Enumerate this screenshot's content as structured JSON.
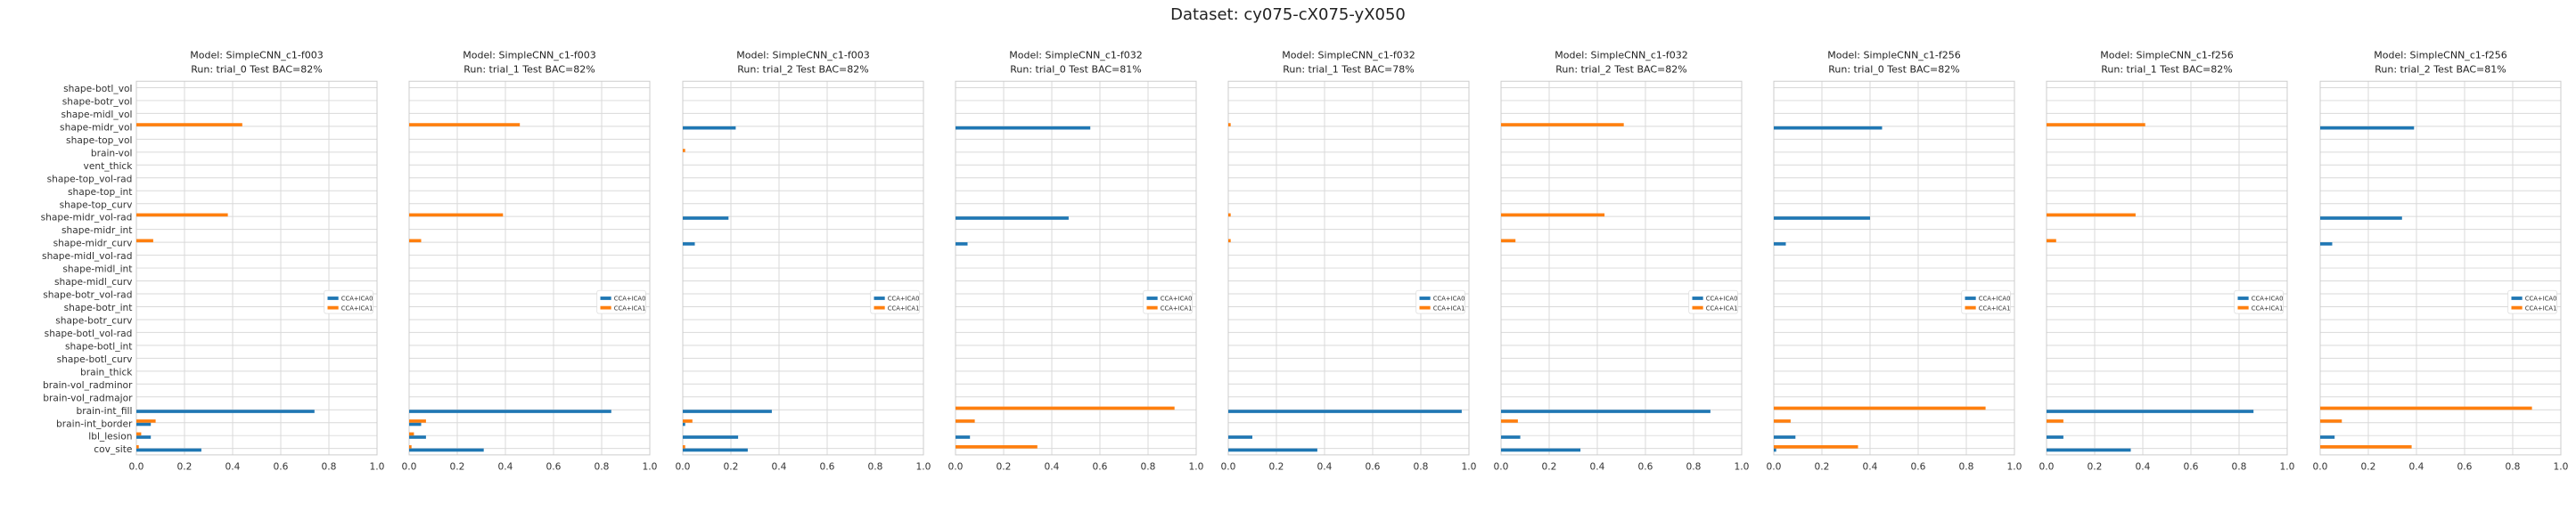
{
  "figure": {
    "suptitle": "Dataset: cy075-cX075-yX050"
  },
  "chart_data": {
    "type": "bar",
    "orientation": "horizontal",
    "categories": [
      "shape-botl_vol",
      "shape-botr_vol",
      "shape-midl_vol",
      "shape-midr_vol",
      "shape-top_vol",
      "brain-vol",
      "vent_thick",
      "shape-top_vol-rad",
      "shape-top_int",
      "shape-top_curv",
      "shape-midr_vol-rad",
      "shape-midr_int",
      "shape-midr_curv",
      "shape-midl_vol-rad",
      "shape-midl_int",
      "shape-midl_curv",
      "shape-botr_vol-rad",
      "shape-botr_int",
      "shape-botr_curv",
      "shape-botl_vol-rad",
      "shape-botl_int",
      "shape-botl_curv",
      "brain_thick",
      "brain-vol_radminor",
      "brain-vol_radmajor",
      "brain-int_fill",
      "brain-int_border",
      "lbl_lesion",
      "cov_site"
    ],
    "xlim": [
      0,
      1
    ],
    "xticks": [
      "0.0",
      "0.2",
      "0.4",
      "0.6",
      "0.8",
      "1.0"
    ],
    "grid": true,
    "legend_position": "center-right",
    "series_colors": [
      "#1f77b4",
      "#ff7f0e"
    ],
    "panels": [
      {
        "title_line1": "Model: SimpleCNN_c1-f003",
        "title_line2": "Run: trial_0    Test BAC=82%",
        "series": [
          {
            "name": "CCA+ICA0",
            "values": {
              "brain-int_fill": 0.74,
              "brain-int_border": 0.06,
              "lbl_lesion": 0.06,
              "cov_site": 0.27
            }
          },
          {
            "name": "CCA+ICA1",
            "values": {
              "shape-midr_vol": 0.44,
              "shape-midr_vol-rad": 0.38,
              "shape-midr_curv": 0.07,
              "brain-int_border": 0.08,
              "lbl_lesion": 0.02,
              "cov_site": 0.01
            }
          }
        ]
      },
      {
        "title_line1": "Model: SimpleCNN_c1-f003",
        "title_line2": "Run: trial_1    Test BAC=82%",
        "series": [
          {
            "name": "CCA+ICA0",
            "values": {
              "brain-int_fill": 0.84,
              "brain-int_border": 0.05,
              "lbl_lesion": 0.07,
              "cov_site": 0.31
            }
          },
          {
            "name": "CCA+ICA1",
            "values": {
              "shape-midr_vol": 0.46,
              "shape-midr_vol-rad": 0.39,
              "shape-midr_curv": 0.05,
              "brain-int_border": 0.07,
              "lbl_lesion": 0.02,
              "cov_site": 0.01
            }
          }
        ]
      },
      {
        "title_line1": "Model: SimpleCNN_c1-f003",
        "title_line2": "Run: trial_2    Test BAC=82%",
        "series": [
          {
            "name": "CCA+ICA0",
            "values": {
              "shape-midr_vol": 0.22,
              "shape-midr_vol-rad": 0.19,
              "shape-midr_curv": 0.05,
              "brain-int_fill": 0.37,
              "brain-int_border": 0.01,
              "lbl_lesion": 0.23,
              "cov_site": 0.27
            }
          },
          {
            "name": "CCA+ICA1",
            "values": {
              "brain-vol": 0.01,
              "brain-int_border": 0.04,
              "cov_site": 0.01
            }
          }
        ]
      },
      {
        "title_line1": "Model: SimpleCNN_c1-f032",
        "title_line2": "Run: trial_0    Test BAC=81%",
        "series": [
          {
            "name": "CCA+ICA0",
            "values": {
              "shape-midr_vol": 0.56,
              "shape-midr_vol-rad": 0.47,
              "shape-midr_curv": 0.05,
              "lbl_lesion": 0.06
            }
          },
          {
            "name": "CCA+ICA1",
            "values": {
              "brain-int_fill": 0.91,
              "brain-int_border": 0.08,
              "cov_site": 0.34
            }
          }
        ]
      },
      {
        "title_line1": "Model: SimpleCNN_c1-f032",
        "title_line2": "Run: trial_1    Test BAC=78%",
        "series": [
          {
            "name": "CCA+ICA0",
            "values": {
              "brain-int_fill": 0.97,
              "lbl_lesion": 0.1,
              "cov_site": 0.37
            }
          },
          {
            "name": "CCA+ICA1",
            "values": {
              "shape-midr_vol": 0.01,
              "shape-midr_vol-rad": 0.01,
              "shape-midr_curv": 0.01
            }
          }
        ]
      },
      {
        "title_line1": "Model: SimpleCNN_c1-f032",
        "title_line2": "Run: trial_2    Test BAC=82%",
        "series": [
          {
            "name": "CCA+ICA0",
            "values": {
              "brain-int_fill": 0.87,
              "lbl_lesion": 0.08,
              "cov_site": 0.33
            }
          },
          {
            "name": "CCA+ICA1",
            "values": {
              "shape-midr_vol": 0.51,
              "shape-midr_vol-rad": 0.43,
              "shape-midr_curv": 0.06,
              "brain-int_border": 0.07
            }
          }
        ]
      },
      {
        "title_line1": "Model: SimpleCNN_c1-f256",
        "title_line2": "Run: trial_0    Test BAC=82%",
        "series": [
          {
            "name": "CCA+ICA0",
            "values": {
              "shape-midr_vol": 0.45,
              "shape-midr_vol-rad": 0.4,
              "shape-midr_curv": 0.05,
              "lbl_lesion": 0.09,
              "cov_site": 0.01
            }
          },
          {
            "name": "CCA+ICA1",
            "values": {
              "brain-int_fill": 0.88,
              "brain-int_border": 0.07,
              "cov_site": 0.35
            }
          }
        ]
      },
      {
        "title_line1": "Model: SimpleCNN_c1-f256",
        "title_line2": "Run: trial_1    Test BAC=82%",
        "series": [
          {
            "name": "CCA+ICA0",
            "values": {
              "brain-int_fill": 0.86,
              "lbl_lesion": 0.07,
              "cov_site": 0.35
            }
          },
          {
            "name": "CCA+ICA1",
            "values": {
              "shape-midr_vol": 0.41,
              "shape-midr_vol-rad": 0.37,
              "shape-midr_curv": 0.04,
              "brain-int_border": 0.07
            }
          }
        ]
      },
      {
        "title_line1": "Model: SimpleCNN_c1-f256",
        "title_line2": "Run: trial_2    Test BAC=81%",
        "series": [
          {
            "name": "CCA+ICA0",
            "values": {
              "shape-midr_vol": 0.39,
              "shape-midr_vol-rad": 0.34,
              "shape-midr_curv": 0.05,
              "lbl_lesion": 0.06
            }
          },
          {
            "name": "CCA+ICA1",
            "values": {
              "brain-int_fill": 0.88,
              "brain-int_border": 0.09,
              "cov_site": 0.38
            }
          }
        ]
      }
    ]
  }
}
